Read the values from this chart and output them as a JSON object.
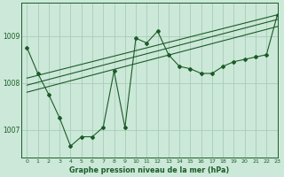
{
  "background_color": "#cce8d8",
  "grid_color": "#a8cdb8",
  "line_color": "#1a5c28",
  "title": "Graphe pression niveau de la mer (hPa)",
  "xlim": [
    -0.5,
    23
  ],
  "ylim": [
    1006.4,
    1009.7
  ],
  "yticks": [
    1007,
    1008,
    1009
  ],
  "xticks": [
    0,
    1,
    2,
    3,
    4,
    5,
    6,
    7,
    8,
    9,
    10,
    11,
    12,
    13,
    14,
    15,
    16,
    17,
    18,
    19,
    20,
    21,
    22,
    23
  ],
  "series_main": {
    "x": [
      0,
      1,
      2,
      3,
      4,
      5,
      6,
      7,
      8,
      9,
      10,
      11,
      12,
      13,
      14,
      15,
      16,
      17,
      18,
      19,
      20,
      21,
      22,
      23
    ],
    "y": [
      1008.75,
      1008.2,
      1007.75,
      1007.25,
      1006.65,
      1006.85,
      1006.85,
      1007.05,
      1008.25,
      1007.05,
      1008.95,
      1008.85,
      1009.1,
      1008.6,
      1008.35,
      1008.3,
      1008.2,
      1008.2,
      1008.35,
      1008.45,
      1008.5,
      1008.55,
      1008.6,
      1009.45
    ]
  },
  "trend1": {
    "x": [
      0,
      23
    ],
    "y": [
      1008.1,
      1009.45
    ]
  },
  "trend2": {
    "x": [
      0,
      23
    ],
    "y": [
      1007.95,
      1009.35
    ]
  },
  "trend3": {
    "x": [
      0,
      23
    ],
    "y": [
      1007.8,
      1009.2
    ]
  }
}
